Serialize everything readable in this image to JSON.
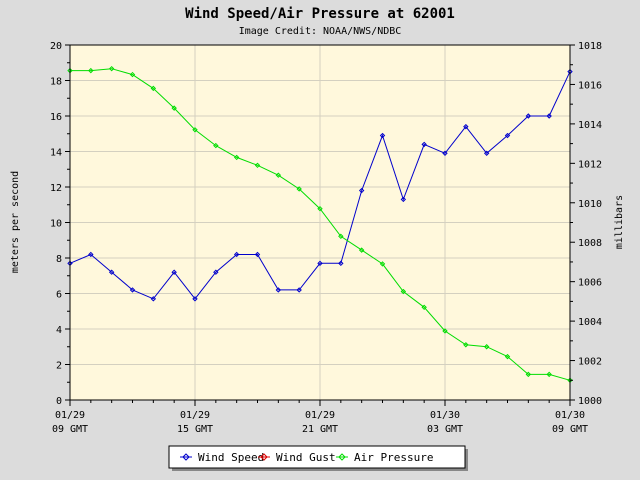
{
  "chart_data": {
    "type": "line",
    "title": "Wind Speed/Air Pressure at 62001",
    "subtitle": "Image Credit: NOAA/NWS/NDBC",
    "ylabel": "meters per second",
    "y2label": "millibars",
    "ylim": [
      0,
      20
    ],
    "y2lim": [
      1000,
      1018
    ],
    "yticks": [
      "0",
      "2",
      "4",
      "6",
      "8",
      "10",
      "12",
      "14",
      "16",
      "18",
      "20"
    ],
    "y2ticks": [
      "1000",
      "1002",
      "1004",
      "1006",
      "1008",
      "1010",
      "1012",
      "1014",
      "1016",
      "1018"
    ],
    "x_hours": [
      0,
      24
    ],
    "xticks": [
      {
        "hour": 0,
        "line1": "01/29",
        "line2": "09 GMT"
      },
      {
        "hour": 6,
        "line1": "01/29",
        "line2": "15 GMT"
      },
      {
        "hour": 12,
        "line1": "01/29",
        "line2": "21 GMT"
      },
      {
        "hour": 18,
        "line1": "01/30",
        "line2": "03 GMT"
      },
      {
        "hour": 24,
        "line1": "01/30",
        "line2": "09 GMT"
      }
    ],
    "grid": true,
    "legend_position": "bottom",
    "series": [
      {
        "name": "Wind Speed",
        "color": "#0000cc",
        "axis": "left",
        "points": [
          [
            0,
            7.7
          ],
          [
            1,
            8.2
          ],
          [
            2,
            7.2
          ],
          [
            3,
            6.2
          ],
          [
            4,
            5.7
          ],
          [
            5,
            7.2
          ],
          [
            6,
            5.7
          ],
          [
            7,
            7.2
          ],
          [
            8,
            8.2
          ],
          [
            9,
            8.2
          ],
          [
            10,
            6.2
          ],
          [
            11,
            6.2
          ],
          [
            12,
            7.7
          ],
          [
            13,
            7.7
          ],
          [
            14,
            11.8
          ],
          [
            15,
            14.9
          ],
          [
            16,
            11.3
          ],
          [
            17,
            14.4
          ],
          [
            18,
            13.9
          ],
          [
            19,
            15.4
          ],
          [
            20,
            13.9
          ],
          [
            21,
            14.9
          ],
          [
            22,
            16.0
          ],
          [
            23,
            16.0
          ],
          [
            24,
            18.5
          ]
        ]
      },
      {
        "name": "Wind Gust",
        "color": "#dd0000",
        "axis": "left",
        "points": []
      },
      {
        "name": "Air Pressure",
        "color": "#00dd00",
        "axis": "right",
        "points": [
          [
            0,
            1016.7
          ],
          [
            1,
            1016.7
          ],
          [
            2,
            1016.8
          ],
          [
            3,
            1016.5
          ],
          [
            4,
            1015.8
          ],
          [
            5,
            1014.8
          ],
          [
            6,
            1013.7
          ],
          [
            7,
            1012.9
          ],
          [
            8,
            1012.3
          ],
          [
            9,
            1011.9
          ],
          [
            10,
            1011.4
          ],
          [
            11,
            1010.7
          ],
          [
            12,
            1009.7
          ],
          [
            13,
            1008.3
          ],
          [
            14,
            1007.6
          ],
          [
            15,
            1006.9
          ],
          [
            16,
            1005.5
          ],
          [
            17,
            1004.7
          ],
          [
            18,
            1003.5
          ],
          [
            19,
            1002.8
          ],
          [
            20,
            1002.7
          ],
          [
            21,
            1002.2
          ],
          [
            22,
            1001.3
          ],
          [
            23,
            1001.3
          ],
          [
            24,
            1001.0
          ]
        ]
      }
    ]
  }
}
